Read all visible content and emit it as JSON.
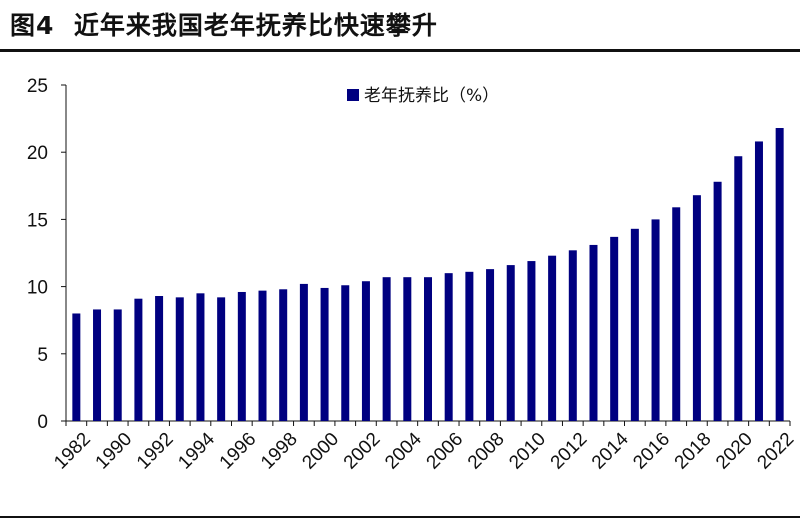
{
  "figure": {
    "label": "图4",
    "title": "近年来我国老年抚养比快速攀升"
  },
  "chart_data": {
    "type": "bar",
    "categories": [
      "1982",
      "1990",
      "1990",
      "1991",
      "1992",
      "1993",
      "1994",
      "1995",
      "1996",
      "1997",
      "1998",
      "1999",
      "2000",
      "2001",
      "2002",
      "2003",
      "2004",
      "2005",
      "2006",
      "2007",
      "2008",
      "2009",
      "2010",
      "2011",
      "2012",
      "2013",
      "2014",
      "2015",
      "2016",
      "2017",
      "2018",
      "2019",
      "2020",
      "2021",
      "2022"
    ],
    "tick_labels": [
      "1982",
      "1990",
      "1992",
      "1994",
      "1996",
      "1998",
      "2000",
      "2002",
      "2004",
      "2006",
      "2008",
      "2010",
      "2012",
      "2014",
      "2016",
      "2018",
      "2020",
      "2022"
    ],
    "series": [
      {
        "name": "老年抚养比（%）",
        "color": "#000080",
        "values": [
          8.0,
          8.3,
          8.3,
          9.1,
          9.3,
          9.2,
          9.5,
          9.2,
          9.6,
          9.7,
          9.8,
          10.2,
          9.9,
          10.1,
          10.4,
          10.7,
          10.7,
          10.7,
          11.0,
          11.1,
          11.3,
          11.6,
          11.9,
          12.3,
          12.7,
          13.1,
          13.7,
          14.3,
          15.0,
          15.9,
          16.8,
          17.8,
          19.7,
          20.8,
          21.8
        ]
      }
    ],
    "ylim": [
      0,
      25
    ],
    "yticks": [
      0,
      5,
      10,
      15,
      20,
      25
    ],
    "xlabel": "",
    "ylabel": "",
    "grid": false,
    "legend": "top-center"
  }
}
